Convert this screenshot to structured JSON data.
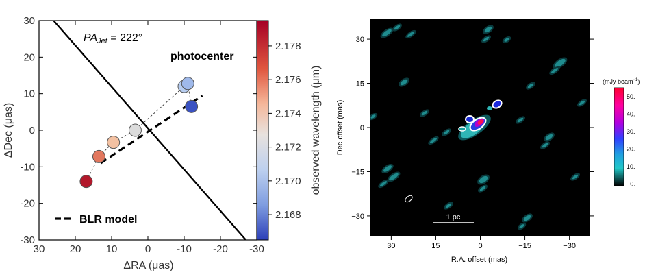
{
  "chart_data": [
    {
      "type": "scatter",
      "xlabel": "ΔRA (μas)",
      "ylabel": "ΔDec (μas)",
      "xlim": [
        30,
        -30
      ],
      "ylim": [
        -30,
        30
      ],
      "xticks": [
        "30",
        "20",
        "10",
        "0",
        "-10",
        "-20",
        "-30"
      ],
      "yticks": [
        "30",
        "20",
        "10",
        "0",
        "-10",
        "-20",
        "-30"
      ],
      "annotation_pa_prefix": "PA",
      "annotation_pa_sub": "Jet",
      "annotation_pa_value": " = 222°",
      "annotation_photocenter": "photocenter",
      "legend_blr": "BLR model",
      "colorbar_label": "observed wavelength (μm)",
      "colorbar_range": [
        2.1665,
        2.1795
      ],
      "colorbar_ticks": [
        "2.178",
        "2.176",
        "2.174",
        "2.172",
        "2.170",
        "2.168"
      ],
      "colorbar_tick_values": [
        2.178,
        2.176,
        2.174,
        2.172,
        2.17,
        2.168
      ],
      "points": [
        {
          "x": 17,
          "y": -14,
          "wavelength": 2.1792,
          "color": "#b2182b"
        },
        {
          "x": 13.5,
          "y": -7.2,
          "wavelength": 2.1765,
          "color": "#e2775e"
        },
        {
          "x": 9.5,
          "y": -3.3,
          "wavelength": 2.1745,
          "color": "#f3c1a2"
        },
        {
          "x": 3.5,
          "y": 0,
          "wavelength": 2.1722,
          "color": "#dcdcdc"
        },
        {
          "x": -10,
          "y": 12,
          "wavelength": 2.1702,
          "color": "#b7cdf0"
        },
        {
          "x": -11,
          "y": 12.8,
          "wavelength": 2.1692,
          "color": "#9fb9ea"
        },
        {
          "x": -12,
          "y": 6.5,
          "wavelength": 2.1672,
          "color": "#3a52c2"
        }
      ],
      "jet_line": [
        [
          26,
          30
        ],
        [
          -27,
          -30
        ]
      ],
      "blr_line": [
        [
          13,
          -9
        ],
        [
          -15,
          9.5
        ]
      ]
    },
    {
      "type": "heatmap",
      "xlabel": "R.A. offset (mas)",
      "ylabel": "Dec offset (mas)",
      "xlim": [
        37,
        -37
      ],
      "ylim": [
        -37,
        37
      ],
      "xticks": [
        "30",
        "15",
        "0",
        "−15",
        "−30"
      ],
      "yticks": [
        "30",
        "15",
        "0",
        "−15",
        "−30"
      ],
      "scalebar_label": "1 pc",
      "colorbar_title_prefix": "(mJy beam",
      "colorbar_title_exp": "−1",
      "colorbar_title_suffix": ")",
      "colorbar_ticks": [
        "50.",
        "40.",
        "30.",
        "20.",
        "10.",
        "−0."
      ],
      "colorbar_tick_values": [
        50,
        40,
        30,
        20,
        10,
        0
      ],
      "colorbar_range": [
        -1,
        55
      ],
      "colors": {
        "background": "#000000",
        "faint": "#0a3a3d",
        "mid": "#2fb6b6",
        "ring": "#ffffff"
      }
    }
  ]
}
